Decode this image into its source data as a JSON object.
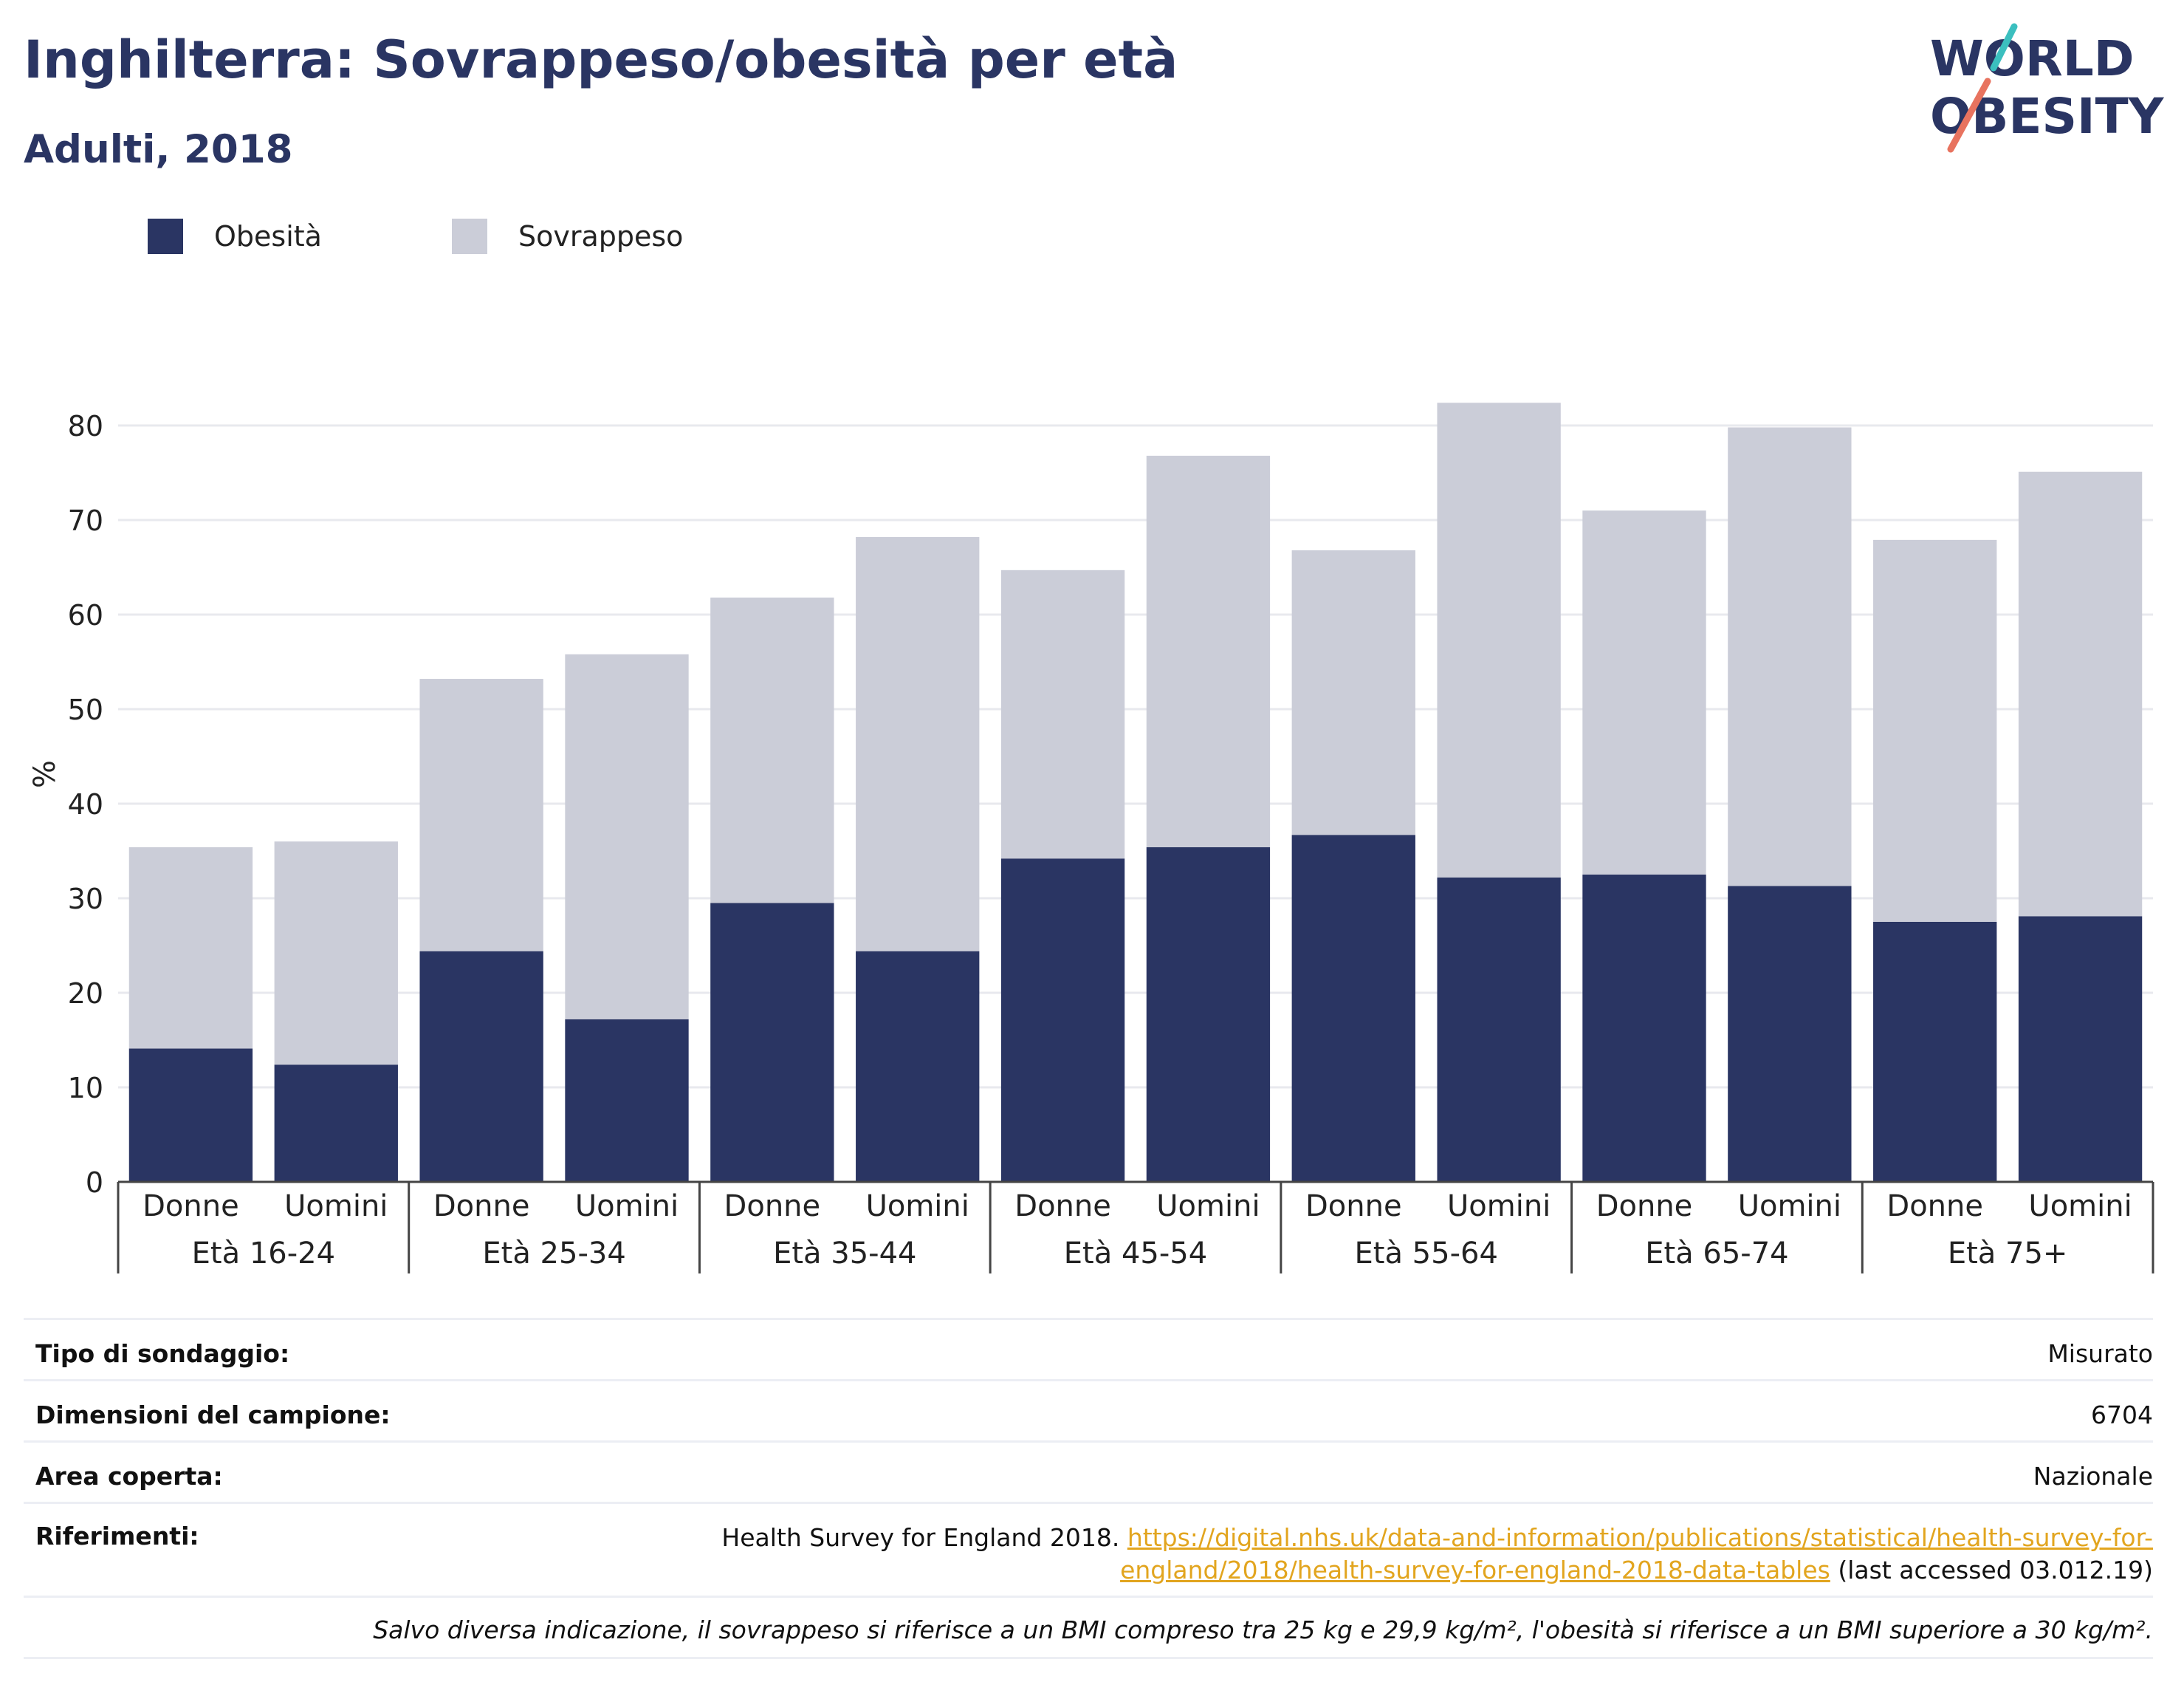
{
  "header": {
    "title": "Inghilterra: Sovrappeso/obesità per età",
    "subtitle": "Adulti, 2018",
    "logo_line1": "WORLD",
    "logo_line2": "OBESITY"
  },
  "colors": {
    "obesity": "#2a3563",
    "overweight": "#cbcdd8",
    "grid": "#e8e9ee",
    "axis_text": "#222222",
    "link": "#e2a51f",
    "logo_teal": "#3bbfbf",
    "logo_coral": "#e8735f"
  },
  "chart_data": {
    "type": "bar",
    "stacked": true,
    "ylabel": "%",
    "ylim": [
      0,
      85
    ],
    "yticks": [
      0,
      10,
      20,
      30,
      40,
      50,
      60,
      70,
      80
    ],
    "grid": true,
    "legend_position": "top-left",
    "groups": [
      "Età 16-24",
      "Età 25-34",
      "Età 35-44",
      "Età 45-54",
      "Età 55-64",
      "Età 65-74",
      "Età 75+"
    ],
    "categories": [
      "Donne",
      "Uomini",
      "Donne",
      "Uomini",
      "Donne",
      "Uomini",
      "Donne",
      "Uomini",
      "Donne",
      "Uomini",
      "Donne",
      "Uomini",
      "Donne",
      "Uomini"
    ],
    "series": [
      {
        "name": "Obesità",
        "values": [
          14.1,
          12.4,
          24.4,
          17.2,
          29.5,
          24.4,
          34.2,
          35.4,
          36.7,
          32.2,
          32.5,
          31.3,
          27.5,
          28.1
        ]
      },
      {
        "name": "Sovrappeso",
        "values": [
          21.3,
          23.6,
          28.8,
          38.6,
          32.3,
          43.8,
          30.5,
          41.4,
          30.1,
          50.2,
          38.5,
          48.5,
          40.4,
          47.0
        ]
      }
    ]
  },
  "info": {
    "survey_type_label": "Tipo di sondaggio:",
    "survey_type_value": "Misurato",
    "sample_label": "Dimensioni del campione:",
    "sample_value": "6704",
    "area_label": "Area coperta:",
    "area_value": "Nazionale",
    "refs_label": "Riferimenti:",
    "refs_text": "Health Survey for England 2018.",
    "refs_link_1": "https://digital.nhs.uk/data-and-information/publications/statistical/health-survey-for-",
    "refs_link_2": "england/2018/health-survey-for-england-2018-data-tables",
    "refs_accessed": "(last accessed 03.012.19)",
    "note": "Salvo diversa indicazione, il sovrappeso si riferisce a un BMI compreso tra 25 kg e 29,9 kg/m², l'obesità si riferisce a un BMI superiore a 30 kg/m²."
  }
}
